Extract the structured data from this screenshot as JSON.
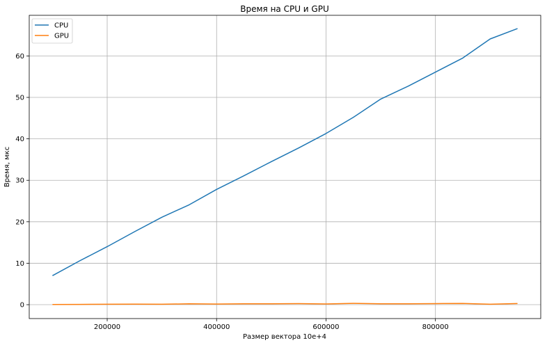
{
  "chart_data": {
    "type": "line",
    "title": "Время на CPU и GPU",
    "xlabel": "Размер вектора 10e+4",
    "ylabel": "Время, мкс",
    "xlim": [
      57500,
      992500
    ],
    "ylim": [
      -3.35,
      69.8
    ],
    "xticks": [
      200000,
      400000,
      600000,
      800000
    ],
    "yticks": [
      0,
      10,
      20,
      30,
      40,
      50,
      60
    ],
    "grid": true,
    "legend_position": "upper-left",
    "x": [
      100000,
      150000,
      200000,
      250000,
      300000,
      350000,
      400000,
      450000,
      500000,
      550000,
      600000,
      650000,
      700000,
      750000,
      800000,
      850000,
      900000,
      950000
    ],
    "series": [
      {
        "name": "CPU",
        "color": "#1f77b4",
        "values": [
          7.0,
          10.6,
          14.0,
          17.6,
          21.1,
          24.1,
          27.8,
          31.1,
          34.5,
          37.8,
          41.3,
          45.2,
          49.6,
          52.7,
          56.1,
          59.5,
          64.1,
          66.6
        ]
      },
      {
        "name": "GPU",
        "color": "#ff7f0e",
        "values": [
          0.05,
          0.07,
          0.1,
          0.12,
          0.1,
          0.2,
          0.15,
          0.2,
          0.22,
          0.25,
          0.18,
          0.32,
          0.2,
          0.22,
          0.25,
          0.3,
          0.1,
          0.28
        ]
      }
    ]
  }
}
